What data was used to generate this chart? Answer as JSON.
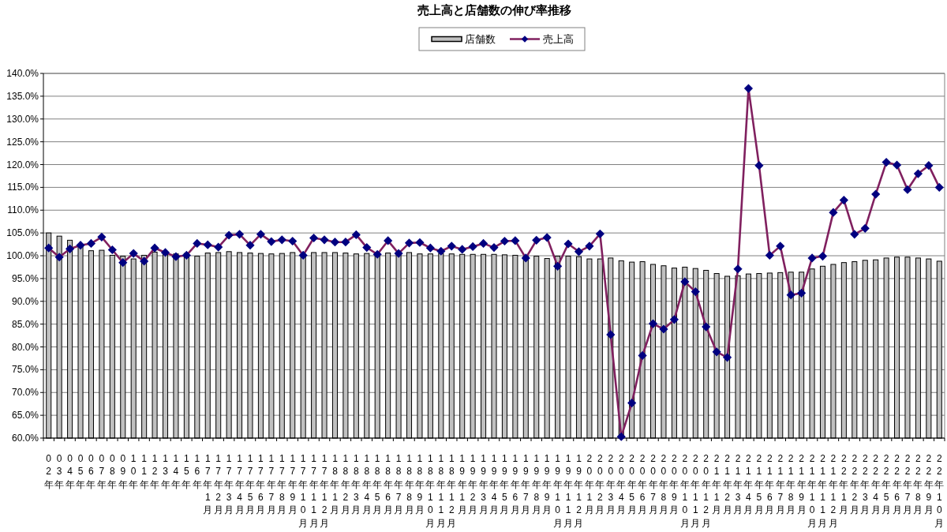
{
  "chart_data": {
    "type": "bar",
    "title": "売上高と店舗数の伸び率推移",
    "categories": [
      "02年",
      "03年",
      "04年",
      "05年",
      "06年",
      "07年",
      "08年",
      "09年",
      "10年",
      "11年",
      "12年",
      "13年",
      "14年",
      "15年",
      "16年",
      "17年1月",
      "17年2月",
      "17年3月",
      "17年4月",
      "17年5月",
      "17年6月",
      "17年7月",
      "17年8月",
      "17年9月",
      "17年10月",
      "17年11月",
      "17年12月",
      "18年1月",
      "18年2月",
      "18年3月",
      "18年4月",
      "18年5月",
      "18年6月",
      "18年7月",
      "18年8月",
      "18年9月",
      "18年10月",
      "18年11月",
      "18年12月",
      "19年1月",
      "19年2月",
      "19年3月",
      "19年4月",
      "19年5月",
      "19年6月",
      "19年7月",
      "19年8月",
      "19年9月",
      "19年10月",
      "19年11月",
      "19年12月",
      "20年1月",
      "20年2月",
      "20年3月",
      "20年4月",
      "20年5月",
      "20年6月",
      "20年7月",
      "20年8月",
      "20年9月",
      "20年10月",
      "20年11月",
      "20年12月",
      "21年1月",
      "21年2月",
      "21年3月",
      "21年4月",
      "21年5月",
      "21年6月",
      "21年7月",
      "21年8月",
      "21年9月",
      "21年10月",
      "21年11月",
      "21年12月",
      "22年1月",
      "22年2月",
      "22年3月",
      "22年4月",
      "22年5月",
      "22年6月",
      "22年7月",
      "22年8月",
      "22年9月",
      "22年10月"
    ],
    "series": [
      {
        "name": "店舗数",
        "color": "#c0c0c0",
        "values": [
          105.0,
          104.3,
          103.4,
          102.3,
          101.1,
          101.2,
          100.1,
          99.9,
          99.3,
          100.1,
          100.8,
          100.5,
          100.4,
          100.5,
          99.9,
          100.6,
          100.7,
          100.9,
          100.7,
          100.6,
          100.5,
          100.4,
          100.5,
          100.7,
          100.3,
          100.7,
          100.7,
          100.7,
          100.6,
          100.4,
          100.5,
          100.3,
          100.6,
          100.6,
          100.7,
          100.4,
          100.4,
          100.5,
          100.4,
          100.3,
          100.3,
          100.3,
          100.3,
          100.2,
          100.1,
          99.9,
          99.9,
          99.4,
          99.9,
          99.9,
          99.8,
          99.3,
          99.3,
          99.5,
          98.9,
          98.6,
          98.7,
          98.1,
          97.8,
          97.3,
          97.5,
          97.2,
          96.8,
          96.1,
          95.5,
          95.6,
          96.0,
          96.1,
          96.2,
          96.3,
          96.4,
          96.4,
          97.1,
          97.7,
          98.1,
          98.5,
          98.7,
          99.0,
          99.1,
          99.5,
          99.7,
          99.7,
          99.5,
          99.3,
          98.8
        ]
      },
      {
        "name": "売上高",
        "type": "line",
        "color": "#80205f",
        "values": [
          101.7,
          99.7,
          101.5,
          102.3,
          102.7,
          104.1,
          101.3,
          98.5,
          100.5,
          98.8,
          101.7,
          100.7,
          99.8,
          100.1,
          102.7,
          102.4,
          101.9,
          104.5,
          104.7,
          102.3,
          104.7,
          103.1,
          103.5,
          103.2,
          100.1,
          103.9,
          103.5,
          103.0,
          103.0,
          104.6,
          101.8,
          100.3,
          103.3,
          100.5,
          102.8,
          102.9,
          101.7,
          101.0,
          102.1,
          101.4,
          102.0,
          102.7,
          101.8,
          103.2,
          103.3,
          99.5,
          103.4,
          104.0,
          97.7,
          102.6,
          100.9,
          102.1,
          104.8,
          82.7,
          60.3,
          67.7,
          78.1,
          85.1,
          83.9,
          86.0,
          94.3,
          92.1,
          84.4,
          78.9,
          77.7,
          97.1,
          136.7,
          119.8,
          100.1,
          102.1,
          91.4,
          91.8,
          99.5,
          99.9,
          109.5,
          112.2,
          104.7,
          106.0,
          113.5,
          120.5,
          119.9,
          114.5,
          118.0,
          119.8,
          115.0
        ]
      }
    ],
    "ylim": [
      60,
      140
    ],
    "yticks": [
      {
        "value": 60,
        "label": "60.0%"
      },
      {
        "value": 65,
        "label": "65.0%"
      },
      {
        "value": 70,
        "label": "70.0%"
      },
      {
        "value": 75,
        "label": "75.0%"
      },
      {
        "value": 80,
        "label": "80.0%"
      },
      {
        "value": 85,
        "label": "85.0%"
      },
      {
        "value": 90,
        "label": "90.0%"
      },
      {
        "value": 95,
        "label": "95.0%"
      },
      {
        "value": 100,
        "label": "100.0%"
      },
      {
        "value": 105,
        "label": "105.0%"
      },
      {
        "value": 110,
        "label": "110.0%"
      },
      {
        "value": 115,
        "label": "115.0%"
      },
      {
        "value": 120,
        "label": "120.0%"
      },
      {
        "value": 125,
        "label": "125.0%"
      },
      {
        "value": 130,
        "label": "130.0%"
      },
      {
        "value": 135,
        "label": "135.0%"
      },
      {
        "value": 140,
        "label": "140.0%"
      }
    ],
    "grid": "y",
    "legend": "top",
    "marker": "diamond",
    "line_style": "solid"
  }
}
